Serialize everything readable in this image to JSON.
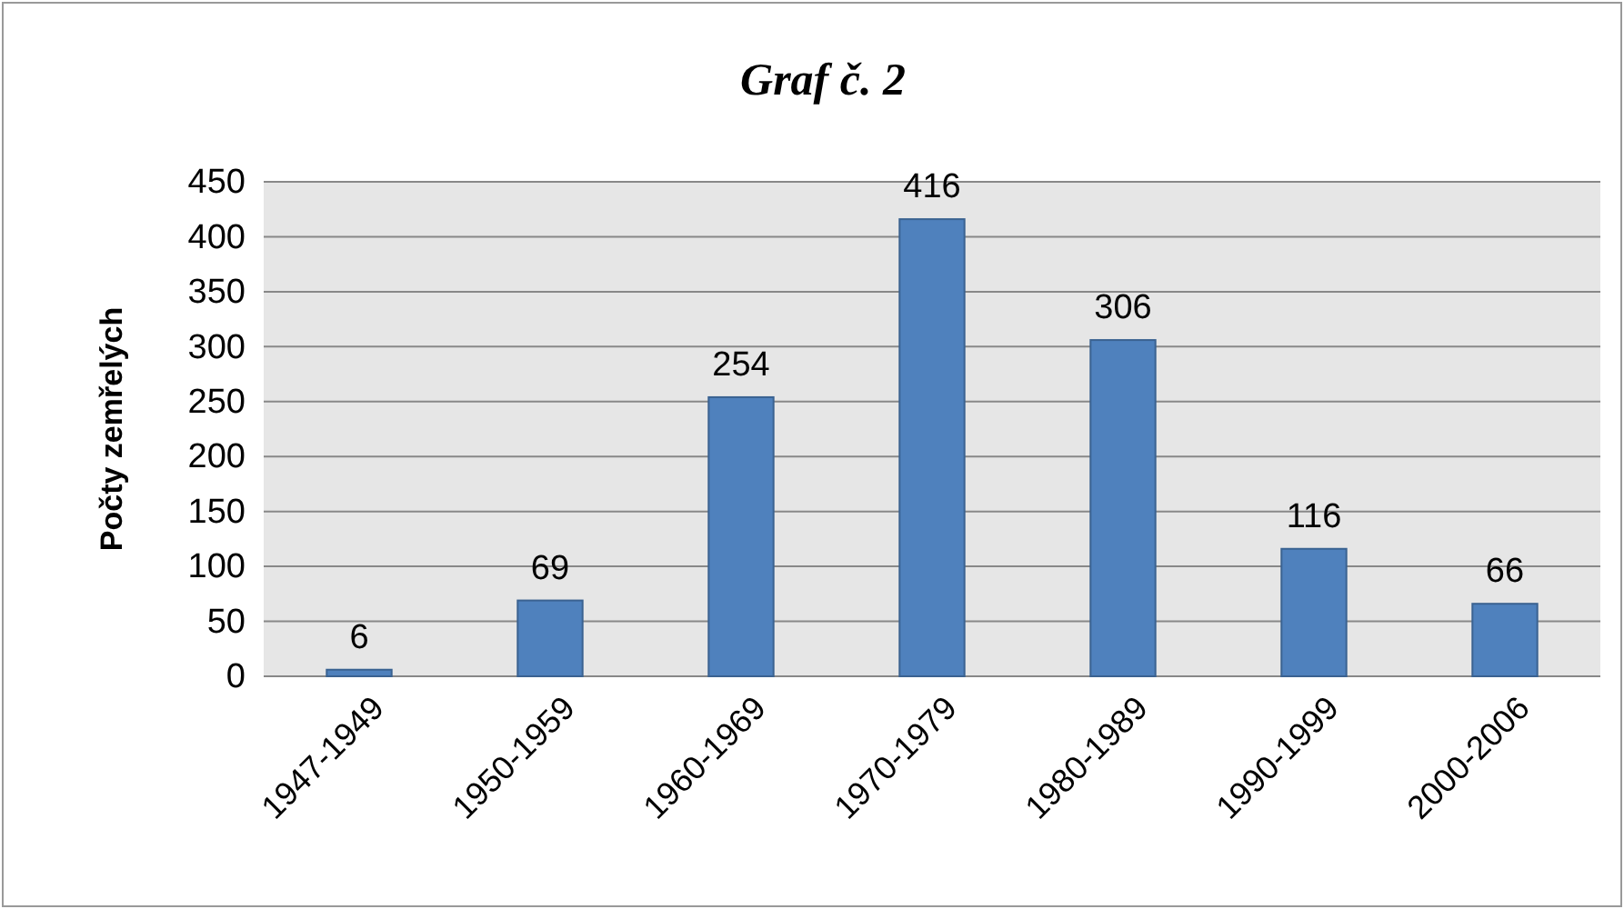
{
  "chart_data": {
    "type": "bar",
    "title": "Graf č. 2",
    "ylabel": "Počty zemřelých",
    "categories": [
      "1947-1949",
      "1950-1959",
      "1960-1969",
      "1970-1979",
      "1980-1989",
      "1990-1999",
      "2000-2006"
    ],
    "values": [
      6,
      69,
      254,
      416,
      306,
      116,
      66
    ],
    "color": "#4f81bd",
    "ylim": [
      0,
      450
    ],
    "yticks": [
      0,
      50,
      100,
      150,
      200,
      250,
      300,
      350,
      400,
      450
    ],
    "grid": "y",
    "data_labels": true
  }
}
